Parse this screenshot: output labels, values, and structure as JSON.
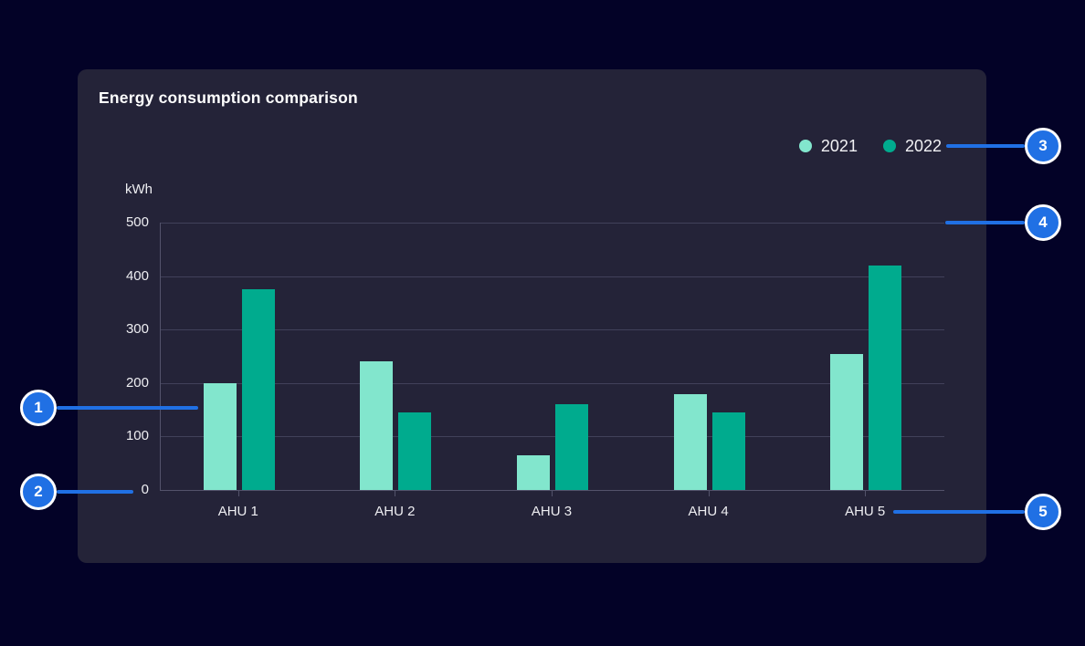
{
  "card": {
    "title": "Energy consumption comparison"
  },
  "colors": {
    "page_background": "#030227",
    "card_background": "#242338",
    "gridline": "#41415a",
    "axis_line": "#53536b",
    "text": "#eeeef2",
    "series_2021": "#82e6cd",
    "series_2022": "#00ab8e",
    "callout_accent": "#2070e4",
    "callout_ring": "#ffffff"
  },
  "callouts": {
    "labels": [
      "1",
      "2",
      "3",
      "4",
      "5"
    ]
  },
  "chart_data": {
    "type": "bar",
    "title": "Energy consumption comparison",
    "ylabel": "kWh",
    "xlabel": "",
    "categories": [
      "AHU 1",
      "AHU 2",
      "AHU 3",
      "AHU 4",
      "AHU 5"
    ],
    "series": [
      {
        "name": "2021",
        "color": "#82e6cd",
        "values": [
          200,
          240,
          65,
          180,
          255
        ]
      },
      {
        "name": "2022",
        "color": "#00ab8e",
        "values": [
          375,
          145,
          160,
          145,
          420
        ]
      }
    ],
    "ylim": [
      0,
      500
    ],
    "yticks": [
      0,
      100,
      200,
      300,
      400,
      500
    ],
    "grid": true,
    "legend_position": "top-right"
  }
}
